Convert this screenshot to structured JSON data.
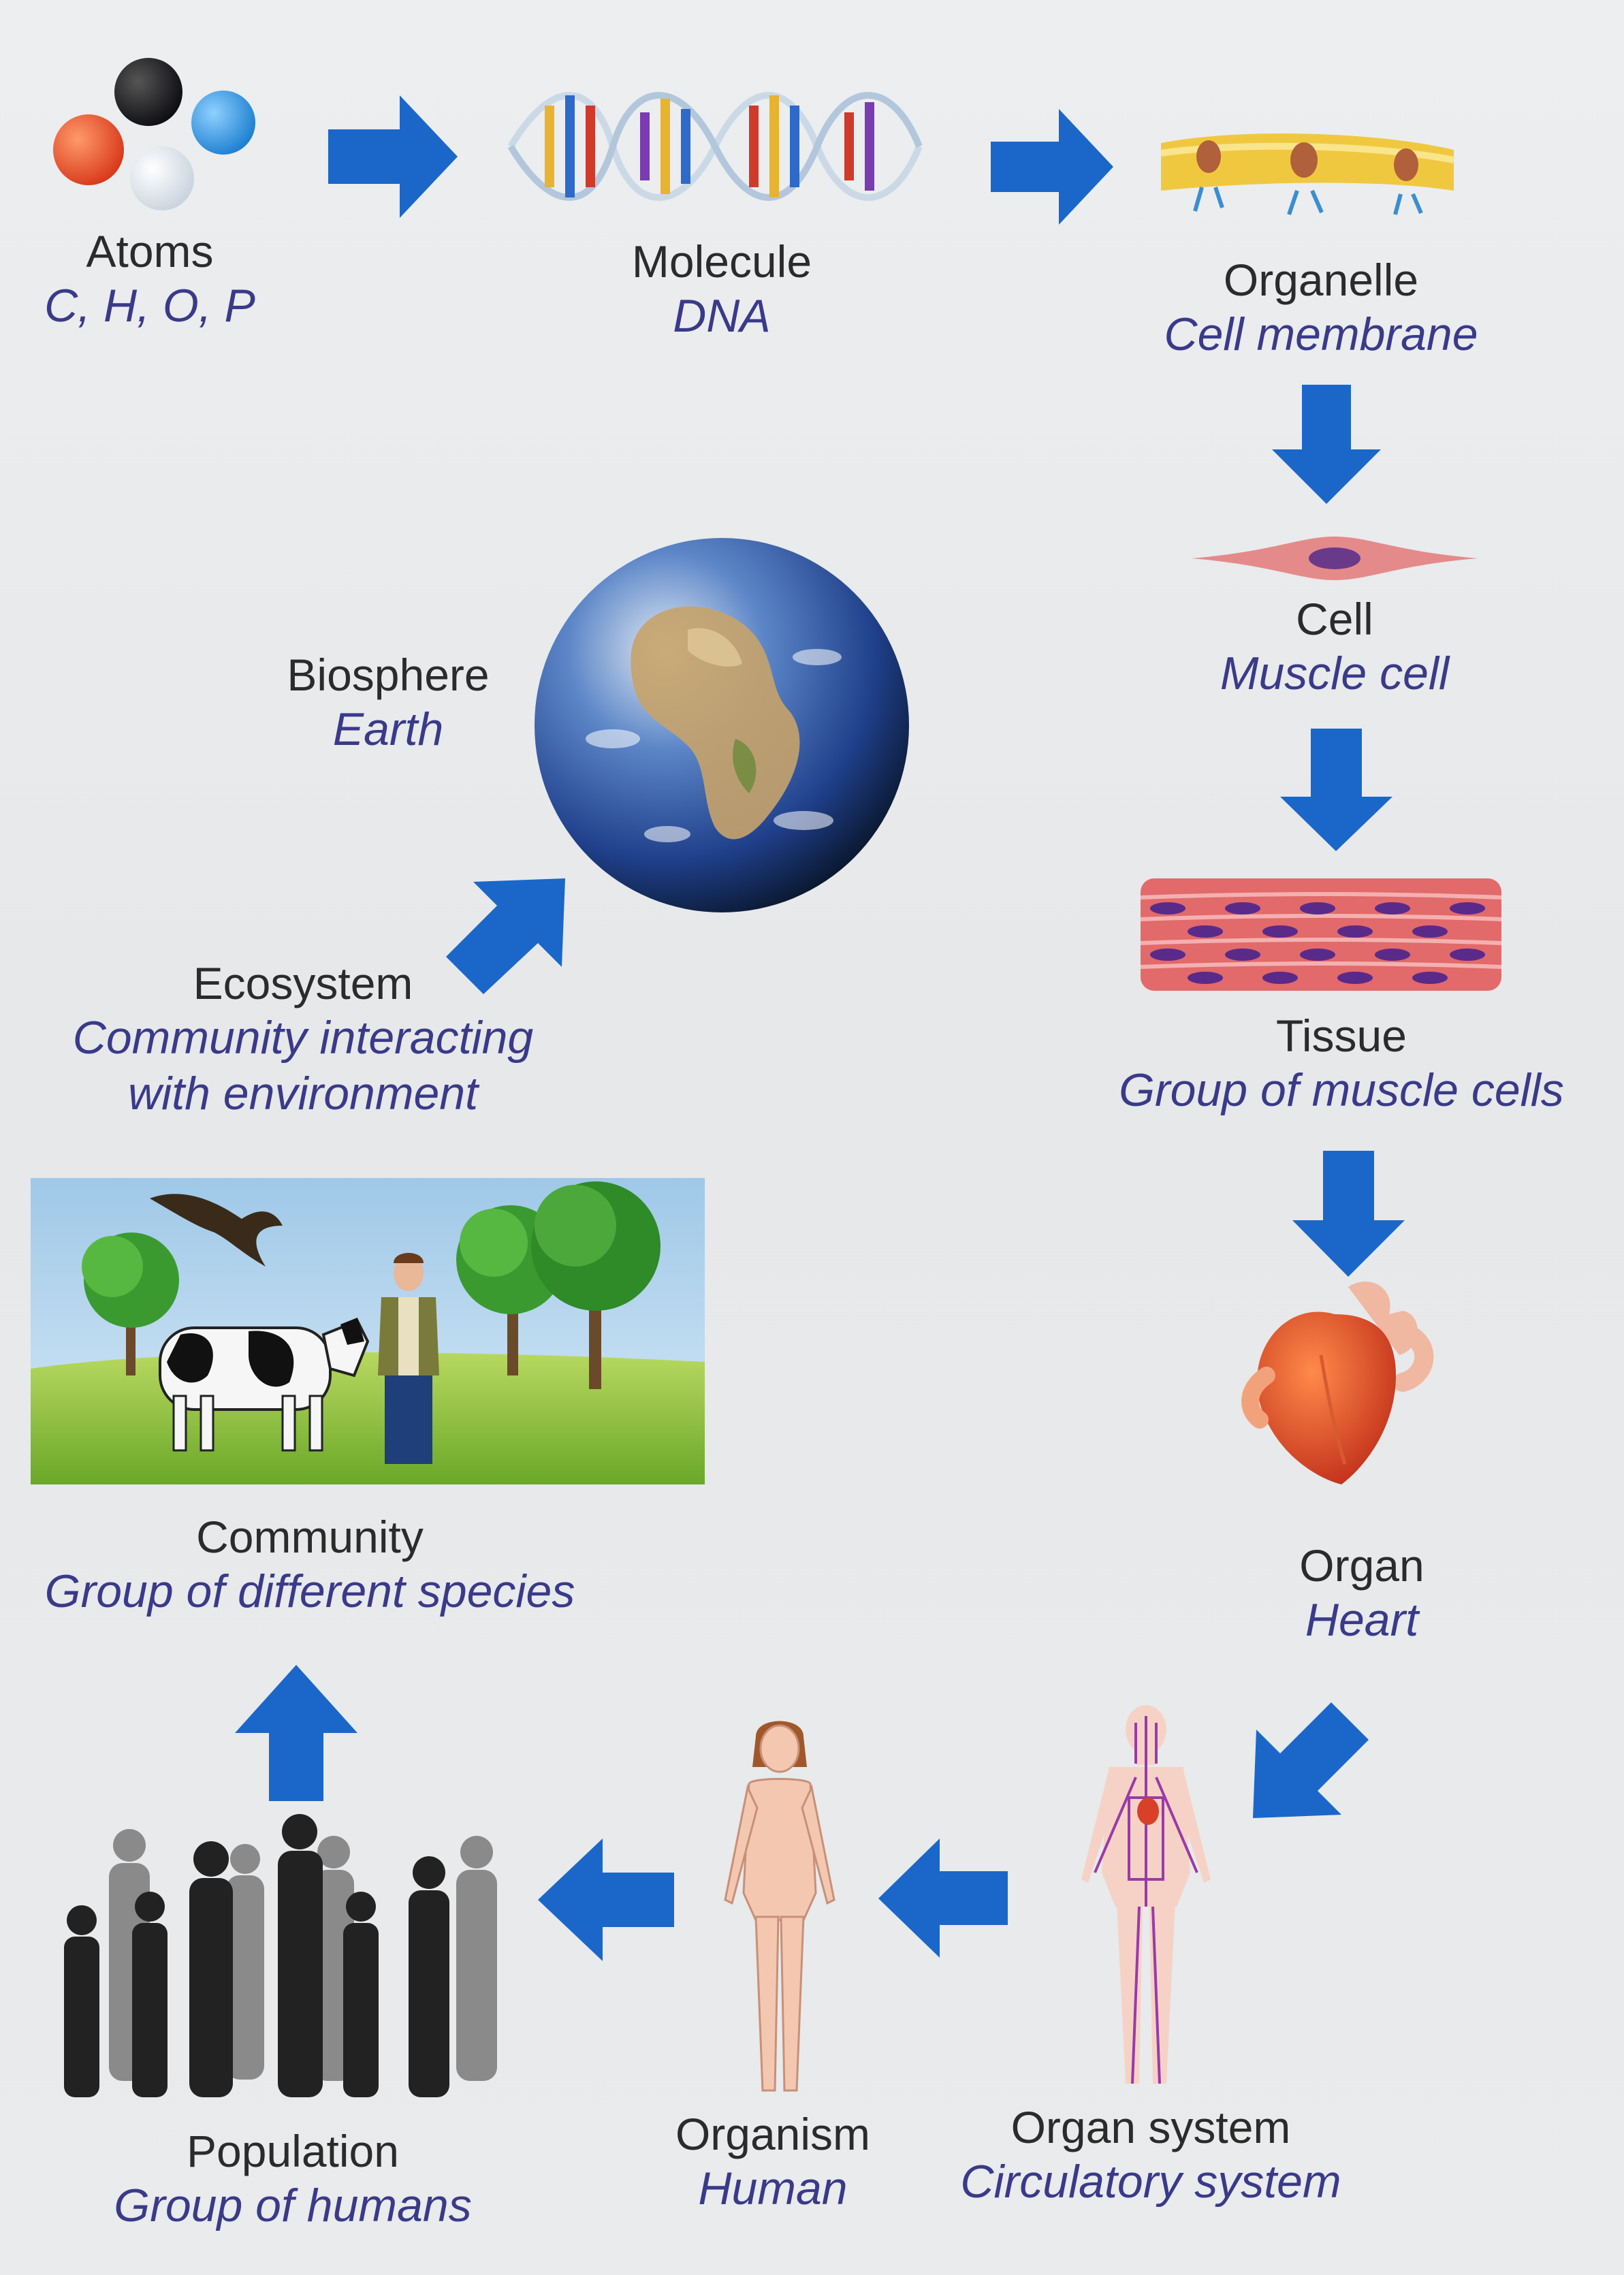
{
  "levels": {
    "atoms": {
      "name": "Atoms",
      "example": "C, H, O, P"
    },
    "molecule": {
      "name": "Molecule",
      "example": "DNA"
    },
    "organelle": {
      "name": "Organelle",
      "example": "Cell membrane"
    },
    "cell": {
      "name": "Cell",
      "example": "Muscle cell"
    },
    "tissue": {
      "name": "Tissue",
      "example": "Group of muscle cells"
    },
    "organ": {
      "name": "Organ",
      "example": "Heart"
    },
    "organ_system": {
      "name": "Organ system",
      "example": "Circulatory system"
    },
    "organism": {
      "name": "Organism",
      "example": "Human"
    },
    "population": {
      "name": "Population",
      "example": "Group of humans"
    },
    "community": {
      "name": "Community",
      "example": "Group of different species"
    },
    "ecosystem": {
      "name": "Ecosystem",
      "example_line1": "Community interacting",
      "example_line2": "with environment"
    },
    "biosphere": {
      "name": "Biosphere",
      "example": "Earth"
    }
  },
  "colors": {
    "arrow": "#1a67c9",
    "example_text": "#3a3a8a",
    "name_text": "#2b2b2b"
  },
  "icons": [
    "atoms-icon",
    "dna-icon",
    "cell-membrane-icon",
    "muscle-cell-icon",
    "muscle-tissue-icon",
    "heart-icon",
    "circulatory-system-icon",
    "human-icon",
    "crowd-icon",
    "community-scene",
    "earth-globe"
  ]
}
